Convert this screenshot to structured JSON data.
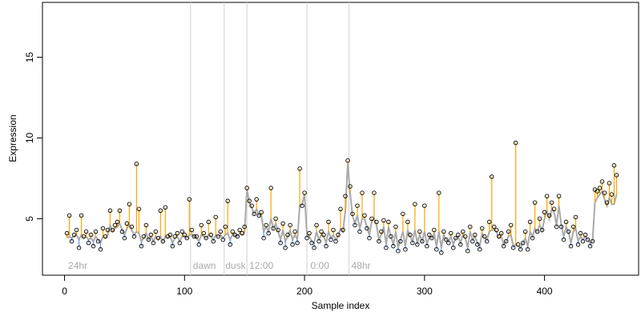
{
  "chart_data": {
    "type": "scatter",
    "xlabel": "Sample index",
    "ylabel": "Expression",
    "xlim": [
      -18.4,
      478.4
    ],
    "ylim": [
      1.5,
      18.4
    ],
    "xticks": [
      0,
      100,
      200,
      300,
      400
    ],
    "yticks": [
      5,
      10,
      15
    ],
    "above_color": "#ffa500",
    "below_color": "#6495ed",
    "vlines": [
      105,
      133,
      152,
      202,
      237
    ],
    "vline_color": "#d3d3d3",
    "annotations": [
      {
        "x": 3,
        "y": 2.1,
        "text": "24hr"
      },
      {
        "x": 107,
        "y": 2.1,
        "text": "dawn"
      },
      {
        "x": 134,
        "y": 2.1,
        "text": "dusk"
      },
      {
        "x": 154,
        "y": 2.1,
        "text": "12:00"
      },
      {
        "x": 205,
        "y": 2.1,
        "text": "0:00"
      },
      {
        "x": 239,
        "y": 2.1,
        "text": "48hr"
      }
    ],
    "x": [
      2,
      4,
      6,
      8,
      10,
      12,
      14,
      16,
      18,
      20,
      22,
      24,
      26,
      28,
      30,
      32,
      34,
      36,
      38,
      40,
      42,
      44,
      46,
      48,
      50,
      52,
      54,
      56,
      58,
      60,
      62,
      64,
      66,
      68,
      70,
      72,
      74,
      76,
      78,
      80,
      82,
      84,
      86,
      88,
      90,
      92,
      94,
      96,
      98,
      100,
      102,
      104,
      106,
      108,
      110,
      112,
      114,
      116,
      118,
      120,
      122,
      124,
      126,
      128,
      130,
      132,
      134,
      136,
      138,
      140,
      142,
      144,
      146,
      148,
      150,
      152,
      154,
      156,
      158,
      160,
      162,
      164,
      166,
      168,
      170,
      172,
      174,
      176,
      178,
      180,
      182,
      184,
      186,
      188,
      190,
      192,
      194,
      196,
      198,
      200,
      202,
      204,
      206,
      208,
      210,
      212,
      214,
      216,
      218,
      220,
      222,
      224,
      226,
      228,
      230,
      232,
      234,
      236,
      238,
      240,
      242,
      244,
      246,
      248,
      250,
      252,
      254,
      256,
      258,
      260,
      262,
      264,
      266,
      268,
      270,
      272,
      274,
      276,
      278,
      280,
      282,
      284,
      286,
      288,
      290,
      292,
      294,
      296,
      298,
      300,
      302,
      304,
      306,
      308,
      310,
      312,
      314,
      316,
      318,
      320,
      322,
      324,
      326,
      328,
      330,
      332,
      334,
      336,
      338,
      340,
      342,
      344,
      346,
      348,
      350,
      352,
      354,
      356,
      358,
      360,
      362,
      364,
      366,
      368,
      370,
      372,
      374,
      376,
      378,
      380,
      382,
      384,
      386,
      388,
      390,
      392,
      394,
      396,
      398,
      400,
      402,
      404,
      406,
      408,
      410,
      412,
      414,
      416,
      418,
      420,
      422,
      424,
      426,
      428,
      430,
      432,
      434,
      436,
      438,
      440,
      442,
      444,
      446,
      448,
      450,
      452,
      454,
      456,
      458,
      460
    ],
    "series": [
      {
        "color": "#000000",
        "values": [
          4.1,
          5.2,
          3.6,
          4.0,
          4.3,
          3.2,
          5.2,
          3.9,
          4.2,
          3.5,
          4.0,
          3.3,
          4.2,
          3.6,
          3.1,
          4.4,
          3.9,
          4.3,
          5.5,
          4.3,
          4.6,
          4.8,
          5.5,
          4.2,
          3.8,
          4.7,
          5.9,
          4.5,
          3.9,
          8.4,
          5.6,
          3.3,
          3.9,
          4.6,
          3.7,
          4.0,
          3.5,
          4.2,
          3.8,
          5.5,
          3.6,
          5.7,
          3.9,
          4.0,
          3.3,
          3.9,
          4.1,
          3.5,
          4.2,
          4.0,
          3.8,
          6.2,
          4.3,
          3.9,
          3.9,
          3.4,
          4.6,
          4.1,
          3.8,
          4.8,
          4.0,
          3.6,
          5.1,
          3.9,
          4.2,
          3.7,
          4.5,
          6.1,
          3.4,
          4.2,
          4.0,
          3.9,
          4.3,
          4.1,
          4.5,
          6.9,
          6.1,
          5.8,
          5.3,
          6.2,
          5.2,
          5.4,
          3.8,
          4.6,
          4.1,
          6.9,
          4.4,
          5.0,
          4.3,
          3.5,
          4.7,
          3.2,
          4.0,
          4.6,
          3.4,
          4.2,
          3.5,
          8.1,
          5.8,
          6.6,
          3.8,
          4.1,
          3.5,
          3.2,
          4.6,
          3.6,
          4.2,
          4.0,
          3.3,
          4.8,
          3.7,
          4.3,
          3.6,
          4.0,
          5.6,
          4.3,
          6.4,
          8.6,
          7.0,
          5.3,
          4.6,
          5.8,
          4.2,
          6.6,
          5.2,
          4.4,
          3.8,
          5.0,
          6.6,
          4.8,
          3.6,
          4.2,
          4.9,
          3.2,
          4.8,
          3.9,
          3.3,
          4.5,
          3.0,
          3.6,
          5.3,
          3.1,
          4.8,
          4.0,
          3.5,
          5.9,
          3.4,
          4.2,
          3.6,
          5.8,
          3.3,
          4.0,
          3.8,
          4.3,
          3.1,
          6.6,
          2.9,
          4.2,
          3.7,
          3.5,
          4.1,
          3.2,
          3.8,
          4.0,
          3.4,
          4.2,
          3.9,
          3.0,
          4.5,
          3.6,
          4.0,
          3.4,
          3.1,
          4.4,
          3.9,
          3.6,
          4.8,
          7.6,
          4.5,
          4.3,
          3.9,
          4.1,
          3.3,
          3.6,
          4.2,
          4.6,
          3.2,
          9.7,
          3.4,
          3.1,
          3.5,
          4.2,
          3.1,
          4.8,
          3.8,
          6.0,
          4.2,
          5.0,
          4.3,
          5.4,
          6.4,
          5.2,
          6.0,
          5.6,
          4.5,
          6.4,
          4.5,
          3.7,
          4.8,
          4.2,
          3.3,
          4.5,
          5.1,
          3.4,
          4.1,
          3.6,
          4.0,
          3.7,
          3.3,
          3.6,
          6.8,
          6.7,
          6.9,
          7.3,
          6.6,
          6.0,
          7.2,
          6.5,
          8.3,
          7.7
        ]
      },
      {
        "color": "#a9a9a9",
        "values": [
          3.8,
          3.9,
          3.8,
          3.9,
          4.0,
          3.7,
          4.0,
          3.8,
          3.9,
          3.7,
          3.8,
          3.6,
          3.9,
          3.7,
          3.5,
          3.9,
          3.8,
          4.0,
          4.6,
          4.2,
          4.4,
          4.5,
          4.7,
          4.3,
          4.0,
          4.4,
          4.6,
          4.3,
          4.0,
          4.2,
          4.1,
          3.6,
          3.8,
          4.1,
          3.7,
          3.9,
          3.6,
          3.9,
          3.7,
          3.9,
          3.6,
          3.9,
          3.8,
          3.9,
          3.5,
          3.8,
          3.9,
          3.6,
          3.9,
          3.9,
          3.8,
          4.0,
          4.0,
          3.9,
          3.8,
          3.6,
          4.0,
          3.9,
          3.8,
          4.0,
          3.9,
          3.7,
          4.0,
          3.9,
          4.0,
          3.8,
          4.0,
          4.1,
          3.7,
          4.0,
          4.0,
          3.9,
          4.1,
          4.0,
          4.2,
          6.8,
          6.0,
          5.7,
          5.3,
          5.6,
          5.2,
          5.2,
          4.2,
          4.5,
          4.2,
          5.0,
          4.4,
          4.7,
          4.2,
          3.7,
          4.3,
          3.6,
          3.9,
          4.3,
          3.7,
          4.0,
          3.7,
          5.8,
          5.9,
          6.5,
          4.0,
          3.9,
          3.6,
          3.5,
          4.2,
          3.7,
          4.0,
          3.9,
          3.5,
          4.2,
          3.8,
          4.0,
          3.7,
          3.9,
          4.4,
          4.2,
          5.5,
          8.4,
          6.6,
          5.2,
          4.7,
          5.2,
          4.4,
          5.0,
          5.0,
          4.5,
          4.0,
          4.8,
          5.0,
          4.6,
          3.7,
          4.0,
          4.5,
          3.4,
          4.5,
          3.9,
          3.4,
          4.2,
          3.2,
          3.7,
          4.2,
          3.3,
          4.3,
          3.9,
          3.6,
          4.3,
          3.5,
          4.0,
          3.6,
          4.2,
          3.4,
          3.9,
          3.8,
          4.1,
          3.3,
          4.2,
          3.2,
          4.0,
          3.7,
          3.6,
          3.9,
          3.4,
          3.8,
          3.9,
          3.5,
          4.0,
          3.8,
          3.2,
          4.2,
          3.7,
          3.9,
          3.5,
          3.3,
          4.1,
          3.8,
          3.7,
          4.2,
          4.3,
          4.3,
          4.2,
          3.8,
          3.9,
          3.4,
          3.6,
          3.9,
          4.0,
          3.3,
          3.4,
          3.3,
          3.2,
          3.5,
          3.8,
          3.3,
          4.2,
          3.9,
          4.4,
          4.2,
          4.6,
          4.3,
          5.0,
          5.5,
          5.0,
          5.6,
          5.4,
          4.6,
          5.8,
          4.6,
          3.9,
          4.5,
          4.2,
          3.5,
          4.2,
          4.4,
          3.6,
          3.9,
          3.7,
          3.9,
          3.7,
          3.5,
          3.6,
          6.0,
          6.3,
          6.5,
          6.7,
          6.2,
          5.8,
          6.3,
          5.9,
          5.9,
          6.5
        ]
      }
    ]
  }
}
